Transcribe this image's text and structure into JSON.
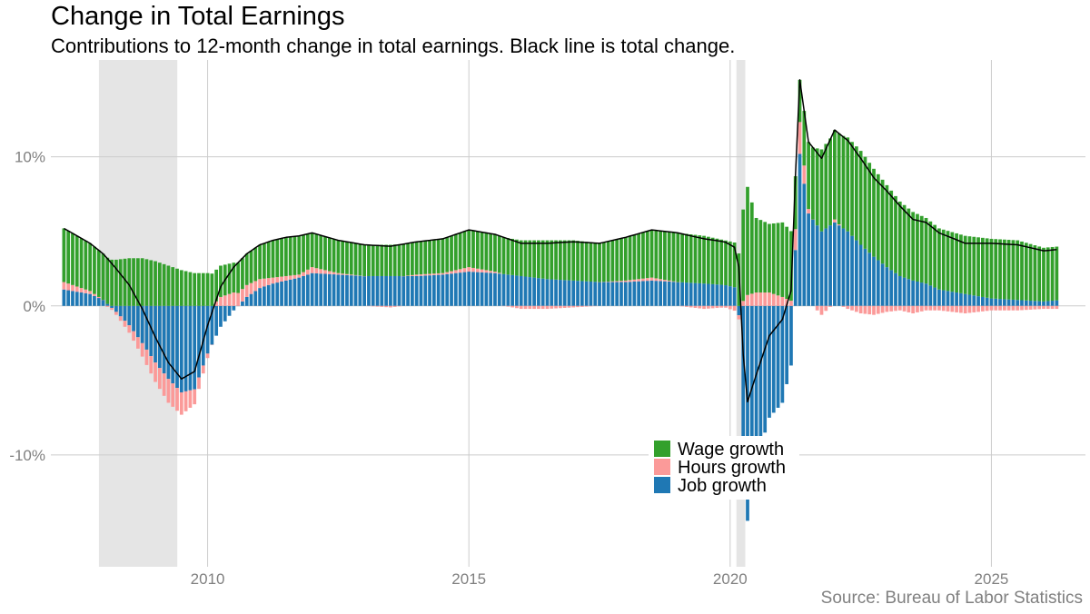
{
  "chart_data": {
    "type": "bar",
    "stacked": true,
    "title": "Change in Total Earnings",
    "subtitle": "Contributions to 12-month change in total earnings. Black line is total change.",
    "source": "Source: Bureau of Labor Statistics",
    "x_range": [
      2007.0,
      2026.8
    ],
    "ylim": [
      -17.5,
      16.5
    ],
    "x_ticks": [
      {
        "value": 2010,
        "label": "2010"
      },
      {
        "value": 2015,
        "label": "2015"
      },
      {
        "value": 2020,
        "label": "2020"
      },
      {
        "value": 2025,
        "label": "2025"
      }
    ],
    "y_ticks": [
      {
        "value": 10,
        "label": "10%"
      },
      {
        "value": 0,
        "label": "0%"
      },
      {
        "value": -10,
        "label": "-10%"
      }
    ],
    "grid": true,
    "legend_position": "bottom-center",
    "recessions": [
      {
        "start": 2007.92,
        "end": 2009.42
      },
      {
        "start": 2020.12,
        "end": 2020.29
      }
    ],
    "colors": {
      "wage": "#33a02c",
      "hours": "#fb9a99",
      "job": "#1f78b4",
      "total": "#000000",
      "recession": "#e5e5e5",
      "grid": "#cccccc"
    },
    "series": [
      {
        "name": "Wage growth",
        "key": "wage",
        "color": "#33a02c"
      },
      {
        "name": "Hours growth",
        "key": "hours",
        "color": "#fb9a99"
      },
      {
        "name": "Job growth",
        "key": "job",
        "color": "#1f78b4"
      }
    ],
    "line_name": "Total change",
    "monthly_anchors": {
      "start": 2007.25,
      "step_months": 1,
      "wage": [
        [
          2007.25,
          3.6
        ],
        [
          2007.75,
          3.2
        ],
        [
          2008.0,
          3.1
        ],
        [
          2008.25,
          3.1
        ],
        [
          2008.5,
          3.2
        ],
        [
          2008.75,
          3.2
        ],
        [
          2009.0,
          3.0
        ],
        [
          2009.25,
          2.7
        ],
        [
          2009.5,
          2.4
        ],
        [
          2009.75,
          2.2
        ],
        [
          2010.0,
          2.2
        ],
        [
          2010.25,
          2.1
        ],
        [
          2010.5,
          2.0
        ],
        [
          2010.75,
          2.1
        ],
        [
          2011.0,
          2.3
        ],
        [
          2011.25,
          2.5
        ],
        [
          2011.5,
          2.6
        ],
        [
          2011.75,
          2.6
        ],
        [
          2012.0,
          2.3
        ],
        [
          2012.5,
          2.2
        ],
        [
          2013.0,
          2.1
        ],
        [
          2013.5,
          2.1
        ],
        [
          2014.0,
          2.2
        ],
        [
          2014.5,
          2.3
        ],
        [
          2015.0,
          2.5
        ],
        [
          2015.5,
          2.5
        ],
        [
          2016.0,
          2.4
        ],
        [
          2016.5,
          2.6
        ],
        [
          2017.0,
          2.7
        ],
        [
          2017.5,
          2.6
        ],
        [
          2018.0,
          2.9
        ],
        [
          2018.5,
          3.2
        ],
        [
          2019.0,
          3.3
        ],
        [
          2019.5,
          3.2
        ],
        [
          2019.9,
          3.0
        ],
        [
          2020.15,
          3.0
        ],
        [
          2020.3,
          7.7
        ],
        [
          2020.5,
          5.0
        ],
        [
          2020.75,
          4.6
        ],
        [
          2021.0,
          5.0
        ],
        [
          2021.2,
          4.6
        ],
        [
          2021.3,
          2.5
        ],
        [
          2021.5,
          4.5
        ],
        [
          2021.75,
          5.5
        ],
        [
          2022.0,
          6.0
        ],
        [
          2022.25,
          6.3
        ],
        [
          2022.5,
          6.3
        ],
        [
          2022.75,
          5.9
        ],
        [
          2023.0,
          5.5
        ],
        [
          2023.25,
          5.0
        ],
        [
          2023.5,
          4.6
        ],
        [
          2023.75,
          4.4
        ],
        [
          2024.0,
          4.1
        ],
        [
          2024.5,
          3.9
        ],
        [
          2025.0,
          4.0
        ],
        [
          2025.5,
          4.0
        ],
        [
          2026.0,
          3.6
        ],
        [
          2026.33,
          3.6
        ]
      ],
      "hours": [
        [
          2007.25,
          0.5
        ],
        [
          2007.75,
          0.2
        ],
        [
          2008.0,
          0.0
        ],
        [
          2008.25,
          -0.2
        ],
        [
          2008.5,
          -0.5
        ],
        [
          2008.75,
          -0.9
        ],
        [
          2009.0,
          -1.3
        ],
        [
          2009.25,
          -1.6
        ],
        [
          2009.5,
          -1.5
        ],
        [
          2009.75,
          -1.0
        ],
        [
          2010.0,
          -0.3
        ],
        [
          2010.25,
          0.6
        ],
        [
          2010.5,
          0.9
        ],
        [
          2010.75,
          0.8
        ],
        [
          2011.0,
          0.6
        ],
        [
          2011.25,
          0.4
        ],
        [
          2011.5,
          0.3
        ],
        [
          2011.75,
          0.2
        ],
        [
          2012.0,
          0.4
        ],
        [
          2012.5,
          0.1
        ],
        [
          2013.0,
          0.0
        ],
        [
          2013.5,
          -0.1
        ],
        [
          2014.0,
          0.1
        ],
        [
          2014.5,
          0.1
        ],
        [
          2015.0,
          0.3
        ],
        [
          2015.5,
          0.1
        ],
        [
          2016.0,
          -0.2
        ],
        [
          2016.5,
          -0.2
        ],
        [
          2017.0,
          -0.1
        ],
        [
          2017.5,
          0.0
        ],
        [
          2018.0,
          0.1
        ],
        [
          2018.5,
          0.2
        ],
        [
          2019.0,
          0.0
        ],
        [
          2019.5,
          -0.2
        ],
        [
          2019.9,
          -0.1
        ],
        [
          2020.15,
          -0.4
        ],
        [
          2020.3,
          0.7
        ],
        [
          2020.5,
          0.9
        ],
        [
          2020.75,
          0.9
        ],
        [
          2021.0,
          0.6
        ],
        [
          2021.2,
          0.3
        ],
        [
          2021.3,
          2.5
        ],
        [
          2021.5,
          0.3
        ],
        [
          2021.75,
          -0.6
        ],
        [
          2022.0,
          0.2
        ],
        [
          2022.25,
          -0.2
        ],
        [
          2022.5,
          -0.5
        ],
        [
          2022.75,
          -0.6
        ],
        [
          2023.0,
          -0.4
        ],
        [
          2023.25,
          -0.3
        ],
        [
          2023.5,
          -0.5
        ],
        [
          2023.75,
          -0.3
        ],
        [
          2024.0,
          -0.3
        ],
        [
          2024.5,
          -0.5
        ],
        [
          2025.0,
          -0.3
        ],
        [
          2025.5,
          -0.3
        ],
        [
          2026.0,
          -0.2
        ],
        [
          2026.33,
          -0.2
        ]
      ],
      "job": [
        [
          2007.25,
          1.1
        ],
        [
          2007.75,
          0.8
        ],
        [
          2008.0,
          0.4
        ],
        [
          2008.25,
          -0.4
        ],
        [
          2008.5,
          -1.3
        ],
        [
          2008.75,
          -2.5
        ],
        [
          2009.0,
          -3.8
        ],
        [
          2009.25,
          -4.9
        ],
        [
          2009.5,
          -5.8
        ],
        [
          2009.75,
          -5.6
        ],
        [
          2010.0,
          -3.2
        ],
        [
          2010.25,
          -1.4
        ],
        [
          2010.5,
          -0.3
        ],
        [
          2010.75,
          0.6
        ],
        [
          2011.0,
          1.2
        ],
        [
          2011.25,
          1.5
        ],
        [
          2011.5,
          1.7
        ],
        [
          2011.75,
          1.9
        ],
        [
          2012.0,
          2.2
        ],
        [
          2012.5,
          2.1
        ],
        [
          2013.0,
          2.0
        ],
        [
          2013.5,
          2.0
        ],
        [
          2014.0,
          2.0
        ],
        [
          2014.5,
          2.1
        ],
        [
          2015.0,
          2.3
        ],
        [
          2015.5,
          2.2
        ],
        [
          2016.0,
          2.0
        ],
        [
          2016.5,
          1.8
        ],
        [
          2017.0,
          1.7
        ],
        [
          2017.5,
          1.6
        ],
        [
          2018.0,
          1.6
        ],
        [
          2018.5,
          1.7
        ],
        [
          2019.0,
          1.6
        ],
        [
          2019.5,
          1.5
        ],
        [
          2019.9,
          1.4
        ],
        [
          2020.15,
          1.2
        ],
        [
          2020.3,
          -15.2
        ],
        [
          2020.5,
          -10.5
        ],
        [
          2020.75,
          -7.5
        ],
        [
          2021.0,
          -6.5
        ],
        [
          2021.2,
          -3.5
        ],
        [
          2021.3,
          11.0
        ],
        [
          2021.5,
          6.2
        ],
        [
          2021.75,
          5.0
        ],
        [
          2022.0,
          5.6
        ],
        [
          2022.25,
          5.0
        ],
        [
          2022.5,
          4.1
        ],
        [
          2022.75,
          3.3
        ],
        [
          2023.0,
          2.6
        ],
        [
          2023.25,
          2.0
        ],
        [
          2023.5,
          1.7
        ],
        [
          2023.75,
          1.5
        ],
        [
          2024.0,
          1.1
        ],
        [
          2024.5,
          0.8
        ],
        [
          2025.0,
          0.5
        ],
        [
          2025.5,
          0.4
        ],
        [
          2026.0,
          0.3
        ],
        [
          2026.33,
          0.4
        ]
      ]
    }
  }
}
